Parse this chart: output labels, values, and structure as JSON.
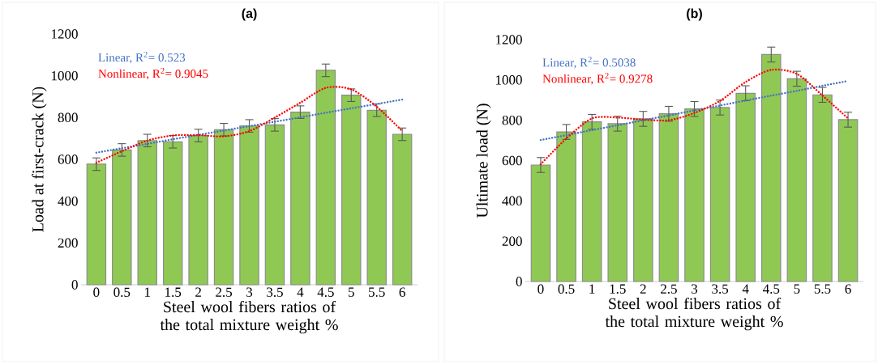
{
  "chart_data": [
    {
      "type": "bar",
      "title": "(a)",
      "xlabel": "Steel wool fibers ratios of the total mixture weight %",
      "ylabel": "Load at first-crack (N)",
      "categories": [
        "0",
        "0.5",
        "1",
        "1.5",
        "2",
        "2.5",
        "3",
        "3.5",
        "4",
        "4.5",
        "5",
        "5.5",
        "6"
      ],
      "ylim": [
        0,
        1200
      ],
      "yticks": [
        0,
        200,
        400,
        600,
        800,
        1000,
        1200
      ],
      "legend": "top left",
      "series": [
        {
          "color": "#8fc953",
          "values": [
            577,
            645,
            690,
            684,
            714,
            742,
            760,
            765,
            826,
            1026,
            907,
            835,
            720
          ],
          "errors": [
            30,
            30,
            30,
            30,
            30,
            30,
            30,
            30,
            30,
            30,
            30,
            30,
            30
          ]
        },
        {
          "type": "line",
          "name": "Linear, R$^{2}$= 0.523",
          "color": "#4472c4",
          "line_style": "dotted",
          "values": [
            632,
            653,
            674,
            696,
            717,
            738,
            759,
            780,
            801,
            823,
            844,
            865,
            886
          ]
        },
        {
          "type": "line",
          "name": "Nonlinear, R$^{2}$= 0.9045",
          "color": "#ff0000",
          "line_style": "dotted",
          "values": [
            584,
            639,
            690,
            714,
            716,
            710,
            735,
            800,
            871,
            942,
            935,
            852,
            735
          ]
        }
      ]
    },
    {
      "type": "bar",
      "title": "(b)",
      "xlabel": "Steel wool fibers ratios of the total mixture weight %",
      "ylabel": "Ultimate load (N)",
      "categories": [
        "0",
        "0.5",
        "1",
        "1.5",
        "2",
        "2.5",
        "3",
        "3.5",
        "4",
        "4.5",
        "5",
        "5.5",
        "6"
      ],
      "ylim": [
        0,
        1200
      ],
      "yticks": [
        0,
        200,
        400,
        600,
        800,
        1000,
        1200
      ],
      "legend": "top left",
      "series": [
        {
          "color": "#8fc953",
          "values": [
            578,
            742,
            792,
            783,
            807,
            832,
            856,
            863,
            934,
            1126,
            1006,
            926,
            803
          ],
          "errors": [
            37,
            37,
            37,
            37,
            37,
            37,
            37,
            37,
            37,
            37,
            37,
            37,
            37
          ]
        },
        {
          "type": "line",
          "name": "Linear, R$^{2}$= 0.5038",
          "color": "#4472c4",
          "line_style": "dotted",
          "values": [
            702,
            726,
            751,
            775,
            800,
            824,
            849,
            873,
            898,
            922,
            946,
            971,
            995
          ]
        },
        {
          "type": "line",
          "name": "Nonlinear, R$^{2}$= 0.9278",
          "color": "#ff0000",
          "line_style": "dotted",
          "values": [
            582,
            709,
            809,
            813,
            803,
            800,
            836,
            896,
            990,
            1050,
            1030,
            923,
            809
          ]
        }
      ]
    }
  ]
}
